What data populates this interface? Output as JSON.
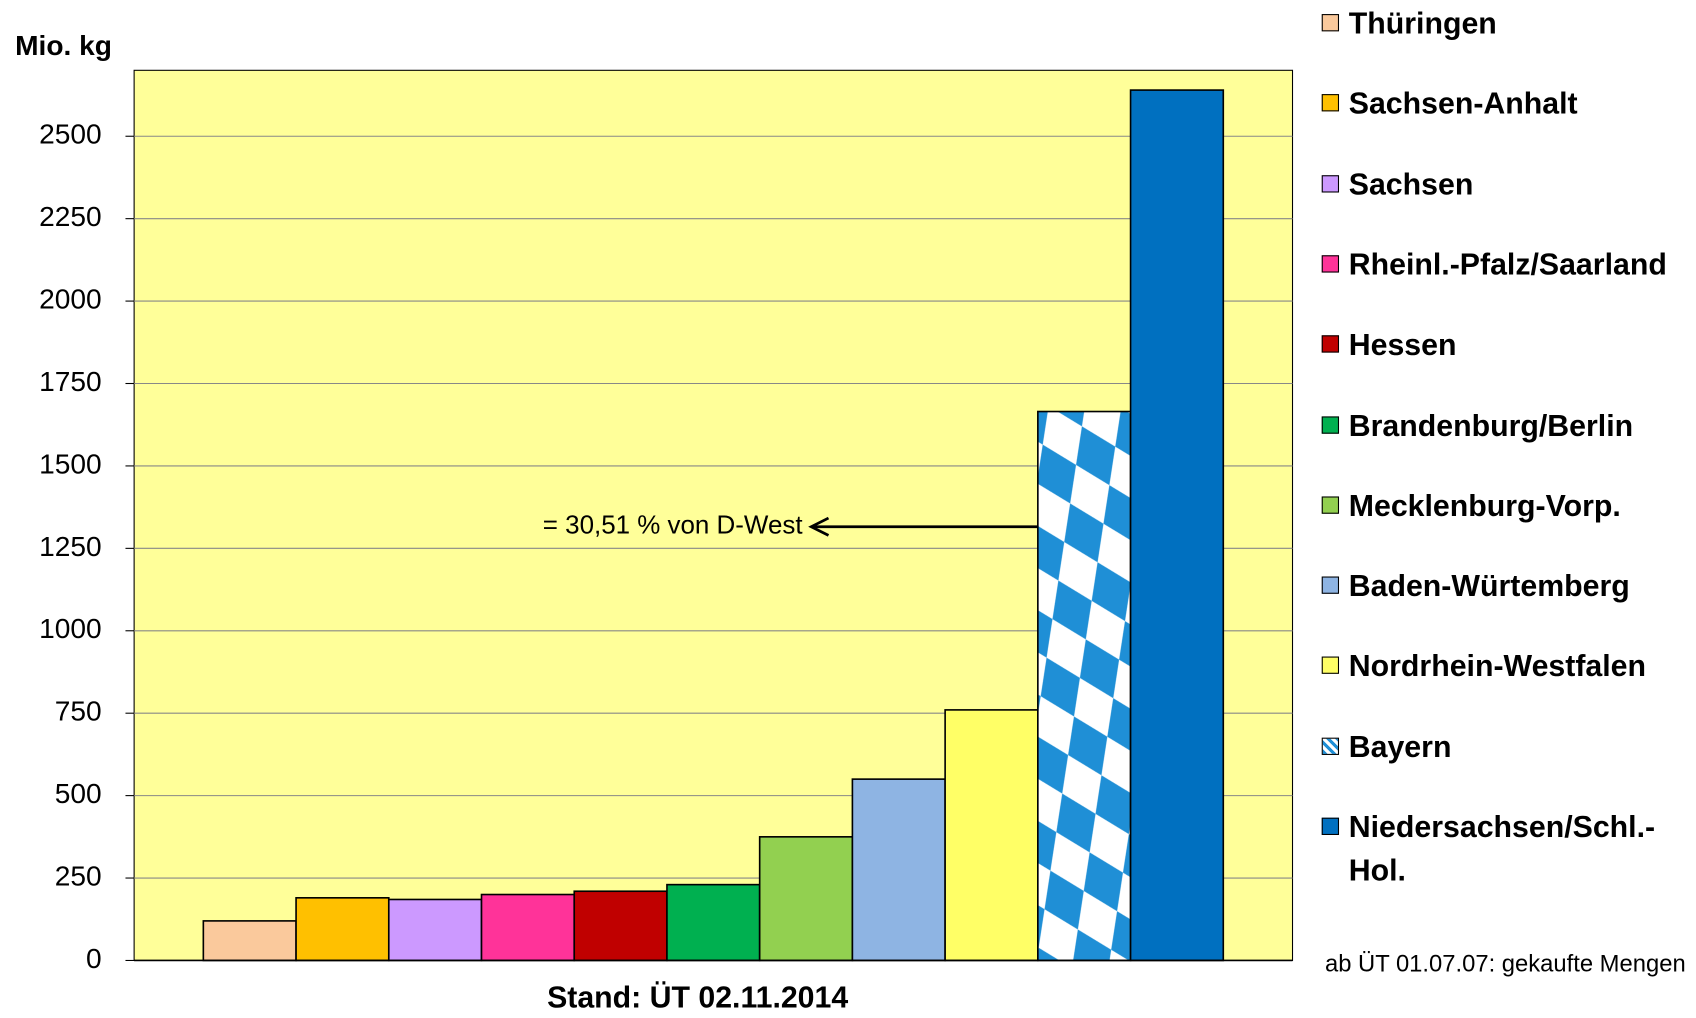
{
  "chart_data": {
    "type": "bar",
    "ylabel": "Mio. kg",
    "xlabel": "Stand: ÜT 02.11.2014",
    "categories": [
      "Thüringen",
      "Sachsen-Anhalt",
      "Sachsen",
      "Rheinl.-Pfalz/Saarland",
      "Hessen",
      "Brandenburg/Berlin",
      "Mecklenburg-Vorp.",
      "Baden-Würtemberg",
      "Nordrhein-Westfalen",
      "Bayern",
      "Niedersachsen/Schl.-Hol."
    ],
    "values": [
      120,
      190,
      185,
      200,
      210,
      230,
      375,
      550,
      760,
      1665,
      2640
    ],
    "colors": [
      "#fac99c",
      "#ffc000",
      "#cc99ff",
      "#ff3399",
      "#c00000",
      "#00b050",
      "#92d050",
      "#8eb4e3",
      "#ffff66",
      "#1f8fd6",
      "#0070c0"
    ],
    "patterns": [
      null,
      null,
      null,
      null,
      null,
      null,
      null,
      null,
      null,
      "diamond",
      null
    ],
    "ylim": [
      0,
      2700
    ],
    "yticks": [
      0,
      250,
      500,
      750,
      1000,
      1250,
      1500,
      1750,
      2000,
      2250,
      2500
    ],
    "grid": true,
    "background": "#ffff99",
    "annotation": "= 30,51 % von D-West",
    "note": "ab ÜT 01.07.07: gekaufte Mengen"
  }
}
